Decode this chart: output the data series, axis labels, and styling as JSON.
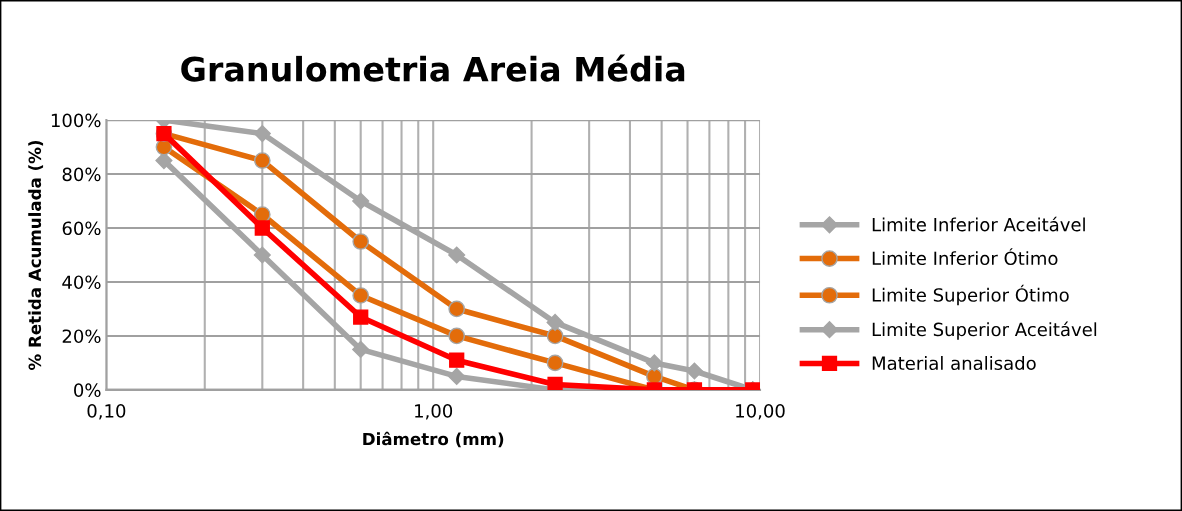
{
  "chart_data": {
    "type": "line",
    "title": "Granulometria Areia Média",
    "xlabel": "Diâmetro (mm)",
    "ylabel": "% Retida Acumulada (%)",
    "log": "x",
    "xlim": [
      0.1,
      10
    ],
    "xticks": [
      {
        "value": 0.1,
        "label": "0,10"
      },
      {
        "value": 1,
        "label": "1,00"
      },
      {
        "value": 10,
        "label": "10,00"
      }
    ],
    "ylim": [
      0,
      100
    ],
    "yticks": [
      {
        "value": 0,
        "label": "0%"
      },
      {
        "value": 20,
        "label": "20%"
      },
      {
        "value": 40,
        "label": "40%"
      },
      {
        "value": 60,
        "label": "60%"
      },
      {
        "value": 80,
        "label": "80%"
      },
      {
        "value": 100,
        "label": "100%"
      }
    ],
    "grid": true,
    "legend": "right",
    "line_style": "solid",
    "x": [
      0.15,
      0.3,
      0.6,
      1.18,
      2.36,
      4.75,
      6.3,
      9.5
    ],
    "series": [
      {
        "name": "Limite Inferior Aceitável",
        "color": "#a5a5a5",
        "marker": "diamond",
        "values": [
          85,
          50,
          15,
          5,
          0,
          0,
          0,
          0
        ]
      },
      {
        "name": "Limite Inferior Ótimo",
        "color": "#e36c0a",
        "marker": "circle",
        "values": [
          90,
          65,
          35,
          20,
          10,
          0,
          null,
          null
        ]
      },
      {
        "name": "Limite Superior Ótimo",
        "color": "#e36c0a",
        "marker": "circle",
        "values": [
          95,
          85,
          55,
          30,
          20,
          5,
          0,
          null
        ]
      },
      {
        "name": "Limite Superior Aceitável",
        "color": "#a5a5a5",
        "marker": "diamond",
        "values": [
          100,
          95,
          70,
          50,
          25,
          10,
          7,
          0
        ]
      },
      {
        "name": "Material analisado",
        "color": "#ff0000",
        "marker": "square",
        "values": [
          95,
          60,
          27,
          11,
          2,
          0,
          0,
          0
        ]
      }
    ]
  }
}
